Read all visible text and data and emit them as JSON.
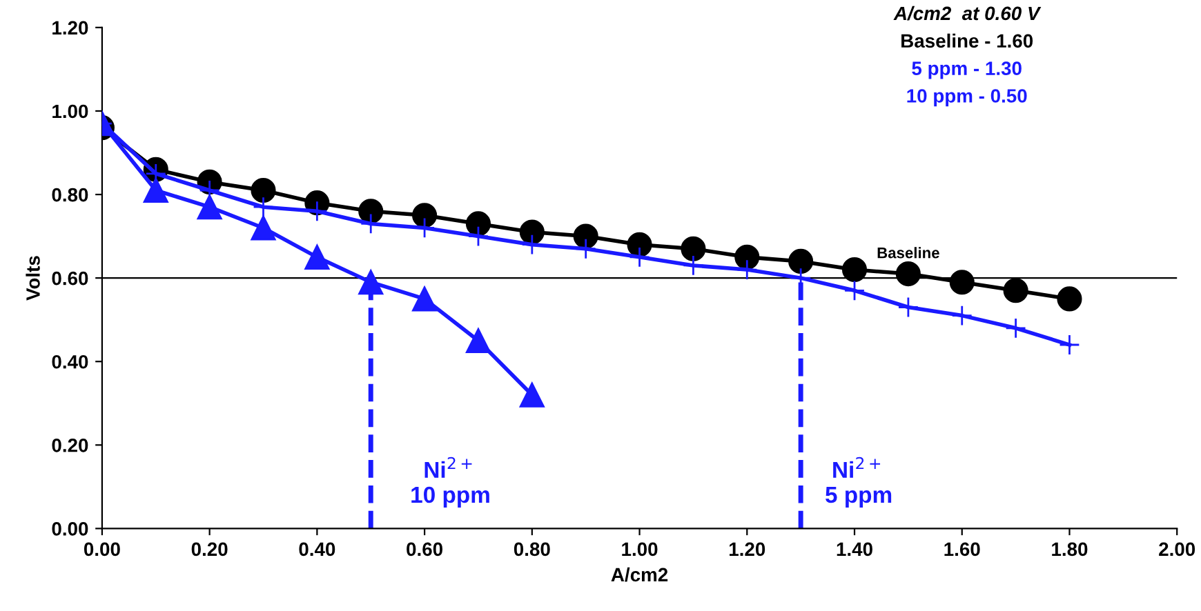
{
  "chart_data": {
    "type": "line",
    "xlabel": "A/cm2",
    "ylabel": "Volts",
    "x": [
      0,
      0.1,
      0.2,
      0.3,
      0.4,
      0.5,
      0.6,
      0.7,
      0.8,
      0.9,
      1.0,
      1.1,
      1.2,
      1.3,
      1.4,
      1.5,
      1.6,
      1.7,
      1.8
    ],
    "series": [
      {
        "name": "Baseline",
        "color": "#000000",
        "marker": "circle",
        "values": [
          0.96,
          0.86,
          0.83,
          0.81,
          0.78,
          0.76,
          0.75,
          0.73,
          0.71,
          0.7,
          0.68,
          0.67,
          0.65,
          0.64,
          0.62,
          0.61,
          0.59,
          0.57,
          0.55
        ]
      },
      {
        "color": "#1a1aff",
        "marker": "cross",
        "values": [
          0.97,
          0.85,
          0.81,
          0.77,
          0.76,
          0.73,
          0.72,
          0.7,
          0.68,
          0.67,
          0.65,
          0.63,
          0.62,
          0.6,
          0.57,
          0.53,
          0.51,
          0.48,
          0.44
        ]
      },
      {
        "color": "#1a1aff",
        "marker": "triangle",
        "values": [
          0.97,
          0.81,
          0.77,
          0.72,
          0.65,
          0.59,
          0.55,
          0.45,
          0.32,
          null,
          null,
          null,
          null,
          null,
          null,
          null,
          null,
          null,
          null
        ]
      }
    ],
    "xlim": [
      0,
      2.0
    ],
    "xticks": [
      {
        "value": 0,
        "label": "0.00"
      },
      {
        "value": 0.2,
        "label": "0.20"
      },
      {
        "value": 0.4,
        "label": "0.40"
      },
      {
        "value": 0.6,
        "label": "0.60"
      },
      {
        "value": 0.8,
        "label": "0.80"
      },
      {
        "value": 1.0,
        "label": "1.00"
      },
      {
        "value": 1.2,
        "label": "1.20"
      },
      {
        "value": 1.4,
        "label": "1.40"
      },
      {
        "value": 1.6,
        "label": "1.60"
      },
      {
        "value": 1.8,
        "label": "1.80"
      },
      {
        "value": 2.0,
        "label": "2.00"
      }
    ],
    "ylim": [
      0,
      1.2
    ],
    "yticks": [
      {
        "value": 0,
        "label": "0.00"
      },
      {
        "value": 0.2,
        "label": "0.20"
      },
      {
        "value": 0.4,
        "label": "0.40"
      },
      {
        "value": 0.6,
        "label": "0.60"
      },
      {
        "value": 0.8,
        "label": "0.80"
      },
      {
        "value": 1.0,
        "label": "1.00"
      },
      {
        "value": 1.2,
        "label": "1.20"
      }
    ],
    "ref_lines": [
      {
        "axis": "y",
        "value": 0.6,
        "color": "#000000",
        "line_style": "solid"
      },
      {
        "axis": "x",
        "value": 0.5,
        "color": "#1a1aff",
        "line_style": "dashed"
      },
      {
        "axis": "x",
        "value": 1.3,
        "color": "#1a1aff",
        "line_style": "dashed"
      }
    ],
    "annotations": [
      "A/cm2  at 0.60 V",
      "Baseline - 1.60",
      "5 ppm - 1.30",
      "10 ppm - 0.50",
      "Ni$^{2+}$\n10 ppm",
      "Ni$^{2+}$\n5 ppm"
    ],
    "grid": false,
    "legend": false,
    "line_style": "solid"
  }
}
